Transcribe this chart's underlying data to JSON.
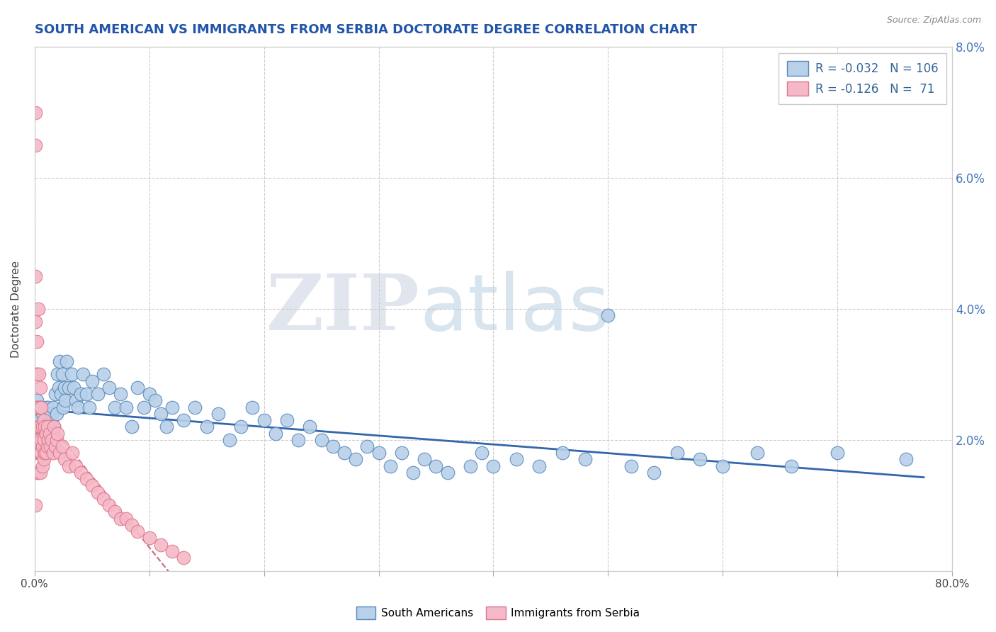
{
  "title": "SOUTH AMERICAN VS IMMIGRANTS FROM SERBIA DOCTORATE DEGREE CORRELATION CHART",
  "source_text": "Source: ZipAtlas.com",
  "ylabel": "Doctorate Degree",
  "xlim": [
    0,
    0.8
  ],
  "ylim": [
    0,
    0.08
  ],
  "xtick_positions": [
    0.0,
    0.1,
    0.2,
    0.3,
    0.4,
    0.5,
    0.6,
    0.7,
    0.8
  ],
  "xtick_labels": [
    "0.0%",
    "",
    "",
    "",
    "",
    "",
    "",
    "",
    "80.0%"
  ],
  "ytick_positions": [
    0.0,
    0.02,
    0.04,
    0.06,
    0.08
  ],
  "ytick_labels": [
    "",
    "2.0%",
    "4.0%",
    "6.0%",
    "8.0%"
  ],
  "legend_line1": "R = -0.032   N = 106",
  "legend_line2": "R = -0.126   N =  71",
  "series1_label": "South Americans",
  "series2_label": "Immigrants from Serbia",
  "series1_color": "#b8d0e8",
  "series2_color": "#f5b8c8",
  "series1_edge": "#5588bb",
  "series2_edge": "#dd7788",
  "trend1_color": "#3366aa",
  "trend2_color": "#cc6677",
  "title_color": "#2255aa",
  "source_color": "#888888",
  "grid_color": "#cccccc",
  "watermark1": "ZIP",
  "watermark2": "atlas",
  "blue_points_x": [
    0.001,
    0.002,
    0.002,
    0.003,
    0.003,
    0.004,
    0.004,
    0.005,
    0.005,
    0.006,
    0.006,
    0.007,
    0.007,
    0.008,
    0.008,
    0.009,
    0.009,
    0.01,
    0.01,
    0.011,
    0.011,
    0.012,
    0.013,
    0.013,
    0.014,
    0.014,
    0.015,
    0.016,
    0.016,
    0.017,
    0.018,
    0.019,
    0.02,
    0.021,
    0.022,
    0.023,
    0.024,
    0.025,
    0.026,
    0.027,
    0.028,
    0.03,
    0.032,
    0.034,
    0.036,
    0.038,
    0.04,
    0.042,
    0.045,
    0.048,
    0.05,
    0.055,
    0.06,
    0.065,
    0.07,
    0.075,
    0.08,
    0.085,
    0.09,
    0.095,
    0.1,
    0.105,
    0.11,
    0.115,
    0.12,
    0.13,
    0.14,
    0.15,
    0.16,
    0.17,
    0.18,
    0.19,
    0.2,
    0.21,
    0.22,
    0.23,
    0.24,
    0.25,
    0.26,
    0.27,
    0.28,
    0.29,
    0.3,
    0.31,
    0.32,
    0.33,
    0.34,
    0.35,
    0.36,
    0.38,
    0.39,
    0.4,
    0.42,
    0.44,
    0.46,
    0.48,
    0.5,
    0.52,
    0.54,
    0.56,
    0.58,
    0.6,
    0.63,
    0.66,
    0.7,
    0.76
  ],
  "blue_points_y": [
    0.022,
    0.02,
    0.026,
    0.024,
    0.019,
    0.023,
    0.021,
    0.025,
    0.02,
    0.022,
    0.019,
    0.024,
    0.02,
    0.022,
    0.018,
    0.023,
    0.021,
    0.025,
    0.02,
    0.022,
    0.018,
    0.025,
    0.022,
    0.02,
    0.023,
    0.019,
    0.024,
    0.021,
    0.025,
    0.022,
    0.027,
    0.024,
    0.03,
    0.028,
    0.032,
    0.027,
    0.03,
    0.025,
    0.028,
    0.026,
    0.032,
    0.028,
    0.03,
    0.028,
    0.026,
    0.025,
    0.027,
    0.03,
    0.027,
    0.025,
    0.029,
    0.027,
    0.03,
    0.028,
    0.025,
    0.027,
    0.025,
    0.022,
    0.028,
    0.025,
    0.027,
    0.026,
    0.024,
    0.022,
    0.025,
    0.023,
    0.025,
    0.022,
    0.024,
    0.02,
    0.022,
    0.025,
    0.023,
    0.021,
    0.023,
    0.02,
    0.022,
    0.02,
    0.019,
    0.018,
    0.017,
    0.019,
    0.018,
    0.016,
    0.018,
    0.015,
    0.017,
    0.016,
    0.015,
    0.016,
    0.018,
    0.016,
    0.017,
    0.016,
    0.018,
    0.017,
    0.039,
    0.016,
    0.015,
    0.018,
    0.017,
    0.016,
    0.018,
    0.016,
    0.018,
    0.017
  ],
  "pink_points_x": [
    0.001,
    0.001,
    0.001,
    0.001,
    0.001,
    0.001,
    0.001,
    0.001,
    0.001,
    0.002,
    0.002,
    0.002,
    0.002,
    0.002,
    0.003,
    0.003,
    0.003,
    0.003,
    0.004,
    0.004,
    0.004,
    0.004,
    0.005,
    0.005,
    0.005,
    0.005,
    0.006,
    0.006,
    0.006,
    0.007,
    0.007,
    0.007,
    0.008,
    0.008,
    0.008,
    0.009,
    0.009,
    0.01,
    0.01,
    0.011,
    0.011,
    0.012,
    0.013,
    0.014,
    0.015,
    0.016,
    0.017,
    0.018,
    0.019,
    0.02,
    0.022,
    0.024,
    0.026,
    0.03,
    0.033,
    0.036,
    0.04,
    0.045,
    0.05,
    0.055,
    0.06,
    0.065,
    0.07,
    0.075,
    0.08,
    0.085,
    0.09,
    0.1,
    0.11,
    0.12,
    0.13
  ],
  "pink_points_y": [
    0.07,
    0.065,
    0.045,
    0.038,
    0.03,
    0.025,
    0.02,
    0.018,
    0.01,
    0.035,
    0.03,
    0.025,
    0.02,
    0.015,
    0.04,
    0.025,
    0.02,
    0.015,
    0.03,
    0.025,
    0.022,
    0.018,
    0.028,
    0.022,
    0.018,
    0.015,
    0.025,
    0.02,
    0.018,
    0.022,
    0.019,
    0.016,
    0.023,
    0.02,
    0.017,
    0.022,
    0.018,
    0.021,
    0.018,
    0.022,
    0.019,
    0.02,
    0.021,
    0.019,
    0.02,
    0.018,
    0.022,
    0.019,
    0.02,
    0.021,
    0.018,
    0.019,
    0.017,
    0.016,
    0.018,
    0.016,
    0.015,
    0.014,
    0.013,
    0.012,
    0.011,
    0.01,
    0.009,
    0.008,
    0.008,
    0.007,
    0.006,
    0.005,
    0.004,
    0.003,
    0.002
  ]
}
